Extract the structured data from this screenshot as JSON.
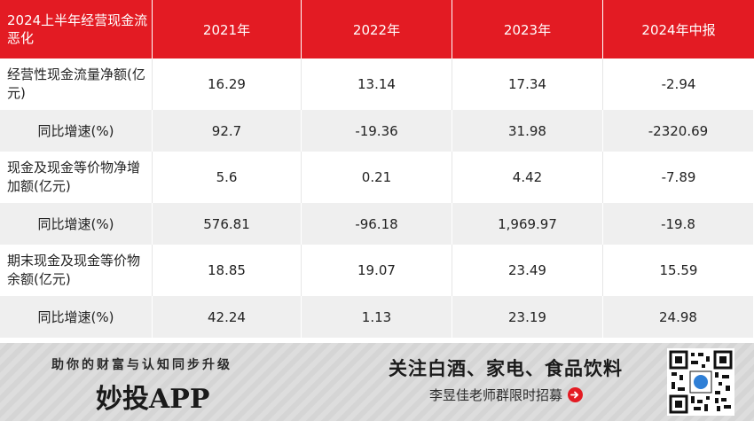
{
  "table": {
    "header": [
      "2024上半年经营现金流恶化",
      "2021年",
      "2022年",
      "2023年",
      "2024年中报"
    ],
    "rows": [
      {
        "label": "经营性现金流量净额(亿元)",
        "values": [
          "16.29",
          "13.14",
          "17.34",
          "-2.94"
        ]
      },
      {
        "label": "同比增速(%)",
        "values": [
          "92.7",
          "-19.36",
          "31.98",
          "-2320.69"
        ]
      },
      {
        "label": "现金及现金等价物净增加额(亿元)",
        "values": [
          "5.6",
          "0.21",
          "4.42",
          "-7.89"
        ]
      },
      {
        "label": "同比增速(%)",
        "values": [
          "576.81",
          "-96.18",
          "1,969.97",
          "-19.8"
        ]
      },
      {
        "label": "期末现金及现金等价物余额(亿元)",
        "values": [
          "18.85",
          "19.07",
          "23.49",
          "15.59"
        ]
      },
      {
        "label": "同比增速(%)",
        "values": [
          "42.24",
          "1.13",
          "23.19",
          "24.98"
        ]
      }
    ]
  },
  "banner": {
    "slogan": "助你的财富与认知同步升级",
    "brand": "妙投APP",
    "follow": "关注白酒、家电、食品饮料",
    "recruit": "李昱佳老师群限时招募"
  },
  "colors": {
    "header_bg": "#e31b23",
    "alt_row_bg": "#efefef",
    "banner_bg": "#d9d9d9"
  },
  "icons": [
    "arrow-right-circle-icon",
    "qr-code-icon"
  ]
}
